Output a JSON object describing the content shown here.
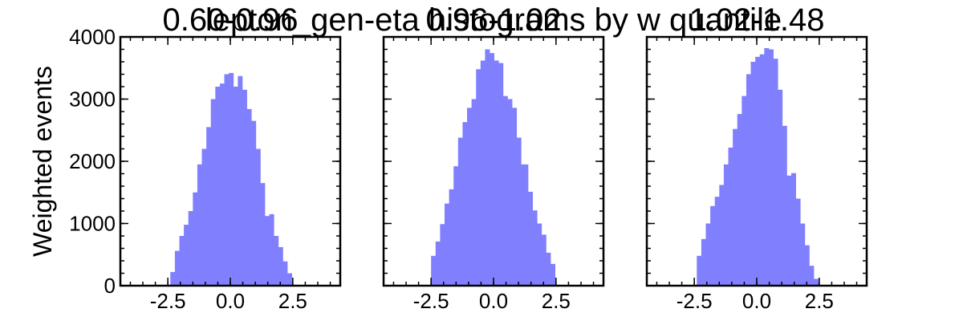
{
  "figure": {
    "suptitle": "lepton_gen-eta histograms by w quantile"
  },
  "colors": {
    "hist_fill": "#8080ff"
  },
  "chart_data": [
    {
      "type": "bar",
      "title": "0.60-0.96",
      "ylabel": "Weighted events",
      "xlabel": "",
      "xlim": [
        -4.4,
        4.4
      ],
      "ylim": [
        0,
        4000
      ],
      "xticks": [
        -2.5,
        0.0,
        2.5
      ],
      "xtick_labels": [
        "-2.5",
        "0.0",
        "2.5"
      ],
      "yticks": [
        0,
        1000,
        2000,
        3000,
        4000
      ],
      "ytick_labels": [
        "0",
        "1000",
        "2000",
        "3000",
        "4000"
      ],
      "grid": false,
      "bin_edges": [
        -2.4,
        -2.22,
        -2.04,
        -1.86,
        -1.68,
        -1.5,
        -1.32,
        -1.14,
        -0.96,
        -0.78,
        -0.6,
        -0.42,
        -0.24,
        -0.06,
        0.12,
        0.3,
        0.48,
        0.66,
        0.84,
        1.02,
        1.2,
        1.38,
        1.56,
        1.74,
        1.92,
        2.1,
        2.28,
        2.46
      ],
      "values": [
        220,
        560,
        800,
        980,
        1200,
        1500,
        1950,
        2200,
        2550,
        3000,
        3200,
        3250,
        3400,
        3420,
        3200,
        3370,
        3150,
        2840,
        2650,
        2200,
        1650,
        1120,
        1150,
        800,
        620,
        390,
        200
      ]
    },
    {
      "type": "bar",
      "title": "0.96-1.02",
      "ylabel": "",
      "xlabel": "",
      "xlim": [
        -4.4,
        4.4
      ],
      "ylim": [
        0,
        4000
      ],
      "xticks": [
        -2.5,
        0.0,
        2.5
      ],
      "xtick_labels": [
        "-2.5",
        "0.0",
        "2.5"
      ],
      "yticks": [
        0,
        1000,
        2000,
        3000,
        4000
      ],
      "grid": false,
      "bin_edges": [
        -2.5,
        -2.32,
        -2.14,
        -1.96,
        -1.78,
        -1.6,
        -1.42,
        -1.24,
        -1.06,
        -0.88,
        -0.7,
        -0.52,
        -0.34,
        -0.16,
        0.02,
        0.2,
        0.38,
        0.56,
        0.74,
        0.92,
        1.1,
        1.38,
        1.56,
        1.74,
        1.92,
        2.1,
        2.28,
        2.46
      ],
      "values": [
        480,
        710,
        990,
        1320,
        1550,
        1920,
        2380,
        2630,
        2860,
        3000,
        3480,
        3620,
        3800,
        3740,
        3620,
        3580,
        3050,
        3000,
        2860,
        2380,
        1950,
        1510,
        1210,
        1000,
        820,
        530,
        350
      ]
    },
    {
      "type": "bar",
      "title": "1.02-1.48",
      "ylabel": "",
      "xlabel": "",
      "xlim": [
        -4.4,
        4.4
      ],
      "ylim": [
        0,
        4000
      ],
      "xticks": [
        -2.5,
        0.0,
        2.5
      ],
      "xtick_labels": [
        "-2.5",
        "0.0",
        "2.5"
      ],
      "yticks": [
        0,
        1000,
        2000,
        3000,
        4000
      ],
      "grid": false,
      "bin_edges": [
        -2.4,
        -2.22,
        -2.04,
        -1.86,
        -1.68,
        -1.5,
        -1.32,
        -1.14,
        -0.96,
        -0.78,
        -0.6,
        -0.42,
        -0.24,
        -0.06,
        0.12,
        0.3,
        0.48,
        0.66,
        0.84,
        1.02,
        1.2,
        1.38,
        1.56,
        1.74,
        1.92,
        2.1,
        2.28,
        2.46
      ],
      "values": [
        480,
        750,
        1000,
        1280,
        1430,
        1620,
        1950,
        2220,
        2520,
        2760,
        3050,
        3400,
        3600,
        3680,
        3720,
        3820,
        3800,
        3650,
        3150,
        2570,
        1770,
        1810,
        1400,
        1000,
        650,
        320,
        110
      ]
    }
  ]
}
